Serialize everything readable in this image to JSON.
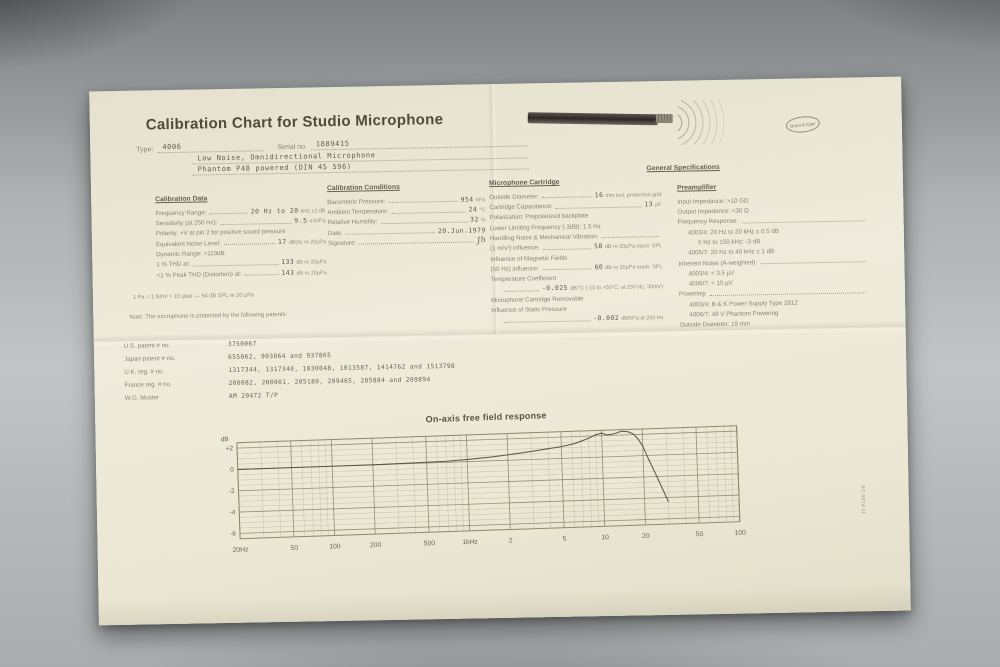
{
  "colors": {
    "paper": "#ece8d6",
    "ink": "#8b8373",
    "ink_dark": "#5d564a",
    "grid": "#8d8466",
    "curve": "#4a4537",
    "background": "#b2b6b7"
  },
  "header": {
    "title": "Calibration Chart for Studio Microphone",
    "type_label": "Type:",
    "type_value": "4006",
    "serial_label": "Serial no.",
    "serial_value": "1889415",
    "desc_line1": "Low Noise, Omnidirectional Microphone",
    "desc_line2": "Phantom P48 powered  (DIN 45 596)"
  },
  "brand": {
    "logo_text": "Brüel & Kjær"
  },
  "sections": {
    "calibration_data": {
      "heading": "Calibration Data",
      "rows": [
        {
          "label": "Frequency Range:",
          "value": "20 Hz to 20",
          "suffix": "kHz ±2 dB"
        },
        {
          "label": "Sensitivity (at 250 Hz):",
          "value": "9.5",
          "suffix": "mV/Pa"
        },
        {
          "label": "Polarity: +V at pin 2 for positive sound pressure",
          "value": "",
          "suffix": ""
        },
        {
          "label": "Equivalent Noise Level:",
          "value": "17",
          "suffix": "dB(A) re 20µPa"
        },
        {
          "label": "Dynamic Range: >110dB",
          "value": "",
          "suffix": ""
        },
        {
          "label": "1 % THD at:",
          "value": "133",
          "suffix": "dB re 20µPa"
        },
        {
          "label": "<1 % Peak THD (Distortion) at:",
          "value": "143",
          "suffix": "dB re 20µPa"
        }
      ],
      "footnote": "1 Pa = 1 N/m²  ≈ 10 µbar  —  94 dB SPL re 20 µPa"
    },
    "calibration_conditions": {
      "heading": "Calibration Conditions",
      "rows": [
        {
          "label": "Barometric Pressure:",
          "value": "954",
          "suffix": "hPa"
        },
        {
          "label": "Ambient Temperature:",
          "value": "24",
          "suffix": "°C"
        },
        {
          "label": "Relative Humidity:",
          "value": "32",
          "suffix": "%"
        },
        {
          "label": "Date:",
          "value": "20.Jun.1979",
          "suffix": ""
        },
        {
          "label": "Signature:",
          "value": "Jh",
          "suffix": "",
          "sig": true
        }
      ]
    },
    "general_specifications": {
      "heading": "General Specifications"
    },
    "microphone_cartridge": {
      "heading": "Microphone Cartridge",
      "rows": [
        {
          "label": "Outside Diameter:",
          "value": "16",
          "suffix": "mm incl. protection grid"
        },
        {
          "label": "Cartridge Capacitance:",
          "value": "13",
          "suffix": "pF"
        },
        {
          "label": "Polarization: Prepolarized backplate",
          "value": "",
          "suffix": ""
        },
        {
          "label": "Lower Limiting Frequency (-3dB): 1.5 Hz",
          "value": "",
          "suffix": ""
        },
        {
          "label": "Handling Noise & Mechanical Vibration:",
          "value": "",
          "suffix": ""
        },
        {
          "label": "(1 m/s²) influence:",
          "value": "58",
          "suffix": "dB re 20µPa equiv. SPL"
        },
        {
          "label": "Influence of Magnetic Fields",
          "value": "",
          "suffix": ""
        },
        {
          "label": "(50 Hz) influence:",
          "value": "60",
          "suffix": "dB re 20µPa equiv. SPL"
        },
        {
          "label": "Temperature Coefficient",
          "value": "",
          "suffix": ""
        },
        {
          "label": "",
          "value": "-0.025",
          "suffix": "dB/°C (-10 to +50°C, at 250 Hz, 30mV)",
          "indent": 1
        },
        {
          "label": "Microphone Cartridge Removable",
          "value": "",
          "suffix": ""
        },
        {
          "label": "Influence of Static Pressure",
          "value": "",
          "suffix": ""
        },
        {
          "label": "",
          "value": "-0.002",
          "suffix": "dB/hPa at 250 Hz",
          "indent": 1
        }
      ]
    },
    "preamplifier": {
      "heading": "Preamplifier",
      "rows": [
        {
          "label": "Input Impedance: >10 GΩ",
          "value": "",
          "suffix": ""
        },
        {
          "label": "Output Impedance: <30 Ω",
          "value": "",
          "suffix": ""
        },
        {
          "label": "Frequency Response:",
          "value": "",
          "suffix": ""
        },
        {
          "label": "4003/4: 20 Hz to 20 kHz ± 0.5 dB",
          "value": "",
          "suffix": "",
          "indent": 1
        },
        {
          "label": "5 Hz to 150 kHz: -3 dB",
          "value": "",
          "suffix": "",
          "indent": 2
        },
        {
          "label": "4006/7: 20 Hz to 40 kHz ± 1 dB",
          "value": "",
          "suffix": "",
          "indent": 1
        },
        {
          "label": "Inherent Noise (A-weighted):",
          "value": "",
          "suffix": ""
        },
        {
          "label": "4003/4: < 3.5 µV",
          "value": "",
          "suffix": "",
          "indent": 1
        },
        {
          "label": "4006/7: < 15 µV",
          "value": "",
          "suffix": "",
          "indent": 1
        },
        {
          "label": "Powering:",
          "value": "",
          "suffix": ""
        },
        {
          "label": "4003/4: B & K Power Supply Type 2812",
          "value": "",
          "suffix": "",
          "indent": 1
        },
        {
          "label": "4006/7: 48 V Phantom Powering",
          "value": "",
          "suffix": "",
          "indent": 1
        },
        {
          "label": "Outside Diameter: 19 mm",
          "value": "",
          "suffix": ""
        }
      ]
    },
    "patents": {
      "note": "Note: The microphone is protected by the following patents:",
      "rows": [
        {
          "label": "U.S. patent # no.",
          "value": "3750067"
        },
        {
          "label": "Japan patent # no.",
          "value": "655062, 903064 and 937865"
        },
        {
          "label": "U.K. reg. # no.",
          "value": "1317344, 1317340, 1030048, 1013587, 1414762 and 1513798"
        },
        {
          "label": "France reg. # no.",
          "value": "200082, 200001, 205180, 209465, 205884 and 209894"
        },
        {
          "label": "W.G. Muster",
          "value": "AM 20472 T/P"
        }
      ]
    }
  },
  "chart_data": {
    "type": "line",
    "title": "On-axis free field response",
    "ylabel": "dB",
    "xlim": [
      20,
      100000
    ],
    "ylim": [
      -6.5,
      2.5
    ],
    "x_ticks": [
      20,
      50,
      100,
      200,
      500,
      1000,
      2000,
      5000,
      10000,
      20000,
      50000,
      100000
    ],
    "x_tick_labels": [
      "20Hz",
      "50",
      "100",
      "200",
      "500",
      "1kHz",
      "2",
      "5",
      "10",
      "20",
      "50",
      "100"
    ],
    "y_ticks": [
      2,
      0,
      -2,
      -4,
      -6
    ],
    "y_tick_labels": [
      "+2",
      "0",
      "-2",
      "-4",
      "-6"
    ],
    "grid": true,
    "legend_position": "none",
    "series": [
      {
        "name": "on-axis response",
        "x": [
          20,
          50,
          100,
          200,
          400,
          700,
          1000,
          1500,
          2000,
          3000,
          4000,
          5000,
          6300,
          8000,
          9000,
          10000,
          11000,
          12500,
          14000,
          15500,
          17000,
          18500,
          20000,
          22000,
          25000,
          28000,
          30000
        ],
        "y": [
          0,
          0,
          0,
          0,
          0.05,
          0.1,
          0.2,
          0.35,
          0.5,
          0.75,
          0.95,
          1.1,
          1.35,
          1.8,
          2.1,
          2.25,
          2.05,
          2.15,
          2.35,
          2.3,
          2.1,
          1.6,
          0.9,
          -0.4,
          -2.0,
          -3.5,
          -4.4
        ]
      }
    ]
  },
  "form_number": "BC 0074-11"
}
